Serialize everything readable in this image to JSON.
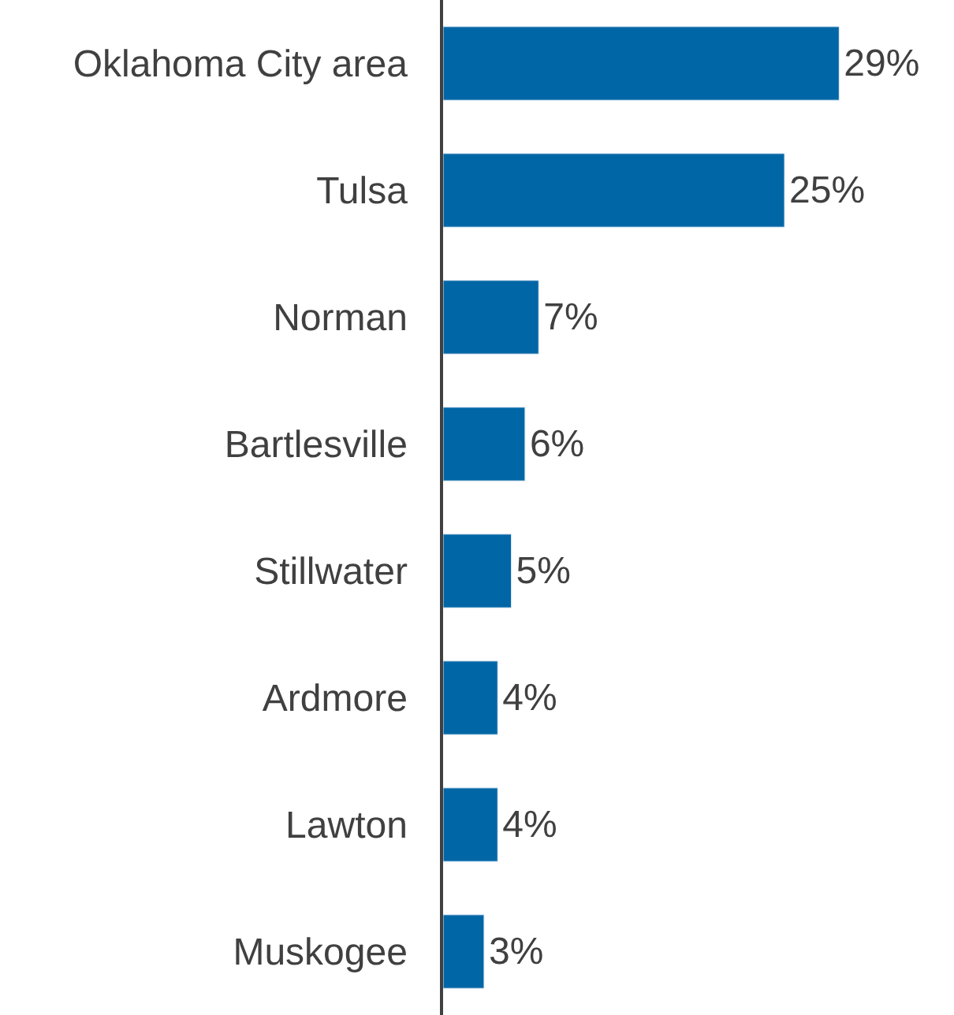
{
  "chart_data": {
    "type": "bar",
    "orientation": "horizontal",
    "categories": [
      "Oklahoma City area",
      "Tulsa",
      "Norman",
      "Bartlesville",
      "Stillwater",
      "Ardmore",
      "Lawton",
      "Muskogee"
    ],
    "values": [
      29,
      25,
      7,
      6,
      5,
      4,
      4,
      3
    ],
    "value_labels": [
      "29%",
      "25%",
      "7%",
      "6%",
      "5%",
      "4%",
      "4%",
      "3%"
    ],
    "color": "#0066a6",
    "tick_labels": "y"
  }
}
